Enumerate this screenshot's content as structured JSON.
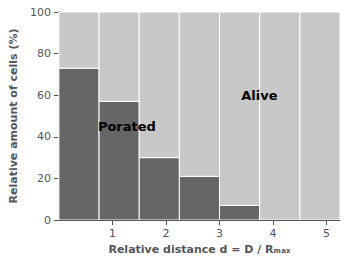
{
  "chart_data": {
    "type": "histogram",
    "xlabel": "Relative distance d = D / Rₘₐₓ",
    "ylabel": "Relative amount of cells (%)",
    "bins": [
      0,
      0.75,
      1.5,
      2.25,
      3.0,
      3.75,
      4.5,
      5.25
    ],
    "series": [
      {
        "color": "#666666",
        "values": [
          73,
          57,
          30,
          21,
          7,
          0,
          0
        ]
      },
      {
        "color": "#c8c8c8",
        "values": [
          27,
          43,
          70,
          79,
          93,
          100,
          100
        ]
      }
    ],
    "stacked": true,
    "annotations": [
      "Porated",
      "Alive"
    ],
    "xlim": [
      0,
      5.25
    ],
    "xticks": [
      1,
      2,
      3,
      4,
      5
    ],
    "ylim": [
      0,
      100
    ],
    "yticks": [
      0,
      20,
      40,
      60,
      80,
      100
    ],
    "grid": false
  }
}
